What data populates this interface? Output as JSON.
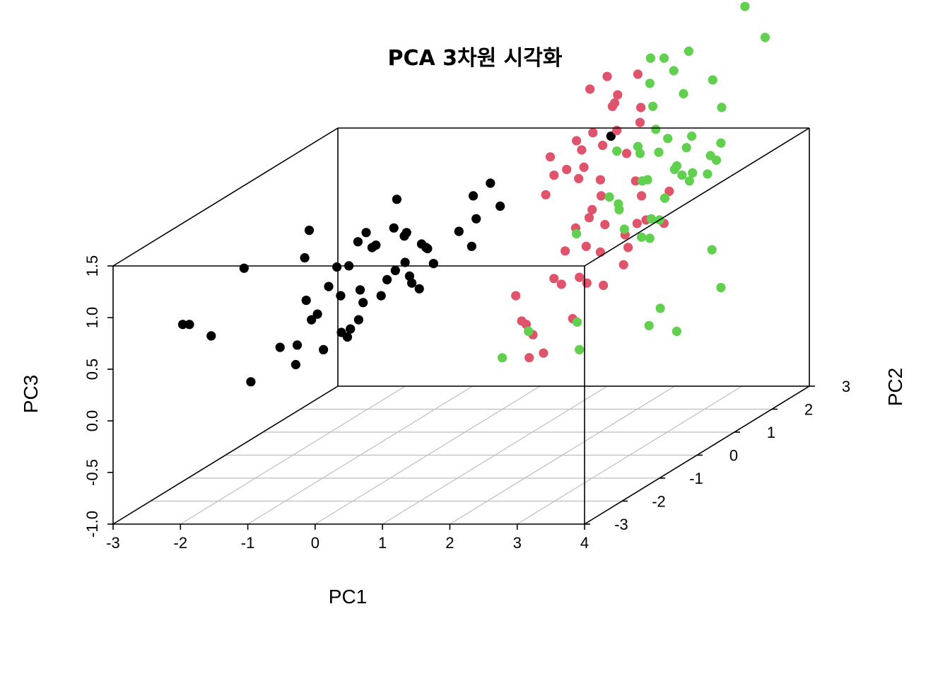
{
  "chart_data": {
    "type": "scatter3d",
    "title": "PCA 3차원 시각화",
    "xlabel": "PC1",
    "ylabel": "PC2",
    "zlabel": "PC3",
    "xlim": [
      -3,
      4
    ],
    "ylim": [
      -3,
      3
    ],
    "zlim": [
      -1.0,
      1.5
    ],
    "x_ticks": [
      "-3",
      "-2",
      "-1",
      "0",
      "1",
      "2",
      "3",
      "4"
    ],
    "y_ticks": [
      "-3",
      "-2",
      "-1",
      "0",
      "1",
      "2",
      "3"
    ],
    "z_ticks": [
      "-1.0",
      "-0.5",
      "0.0",
      "0.5",
      "1.0",
      "1.5"
    ],
    "grid": true,
    "series": [
      {
        "color": "#000000",
        "points": [
          [
            -2.3,
            -2.4,
            0.8
          ],
          [
            -2.2,
            -2.4,
            0.8
          ],
          [
            -2.1,
            -2.0,
            0.6
          ],
          [
            -1.9,
            -1.3,
            0.0
          ],
          [
            -1.3,
            -1.6,
            0.4
          ],
          [
            -1.1,
            -1.5,
            0.4
          ],
          [
            -0.9,
            -1.9,
            0.3
          ],
          [
            -1.0,
            -1.3,
            0.6
          ],
          [
            -0.8,
            -1.5,
            0.7
          ],
          [
            -0.6,
            -1.7,
            0.4
          ],
          [
            -0.5,
            -1.4,
            0.5
          ],
          [
            -0.3,
            -1.6,
            0.5
          ],
          [
            -0.2,
            -1.7,
            0.6
          ],
          [
            -0.3,
            -1.3,
            0.6
          ],
          [
            -0.4,
            -1.0,
            0.7
          ],
          [
            -0.5,
            -0.9,
            0.8
          ],
          [
            -0.3,
            -0.7,
            0.7
          ],
          [
            -0.2,
            -0.5,
            0.9
          ],
          [
            -0.1,
            -0.3,
            0.8
          ],
          [
            0.1,
            -0.4,
            0.7
          ],
          [
            0.2,
            -0.2,
            0.9
          ],
          [
            0.0,
            0.0,
            1.0
          ],
          [
            -0.2,
            0.2,
            1.0
          ],
          [
            -0.5,
            0.0,
            1.2
          ],
          [
            -0.6,
            -0.3,
            1.1
          ],
          [
            0.1,
            -0.6,
            0.8
          ],
          [
            -0.8,
            -1.8,
            0.9
          ],
          [
            -0.4,
            -1.6,
            0.9
          ],
          [
            -0.1,
            -0.9,
            0.9
          ],
          [
            0.0,
            -0.6,
            1.0
          ],
          [
            0.2,
            -0.4,
            1.1
          ],
          [
            0.3,
            0.3,
            1.1
          ],
          [
            0.6,
            0.1,
            1.0
          ],
          [
            -0.7,
            -0.6,
            1.2
          ],
          [
            -0.5,
            -1.2,
            1.1
          ],
          [
            -0.2,
            -0.2,
            1.2
          ],
          [
            0.5,
            0.4,
            1.2
          ],
          [
            0.8,
            0.5,
            1.3
          ],
          [
            0.4,
            0.5,
            1.4
          ],
          [
            0.6,
            0.6,
            1.5
          ],
          [
            -0.4,
            -1.7,
            1.2
          ],
          [
            0.1,
            -0.8,
            1.3
          ],
          [
            -0.4,
            -0.1,
            1.5
          ],
          [
            -0.3,
            -2.1,
            1.1
          ],
          [
            -0.1,
            -1.3,
            1.3
          ],
          [
            -1.2,
            -1.0,
            1.4
          ],
          [
            -1.1,
            -1.3,
            1.2
          ],
          [
            -1.5,
            -2.2,
            1.3
          ],
          [
            -0.8,
            -0.2,
            1.2
          ],
          [
            2.0,
            1.3,
            1.8
          ]
        ]
      },
      {
        "color": "#df536b",
        "points": [
          [
            2.2,
            -1.6,
            0.9
          ],
          [
            2.3,
            -1.5,
            0.6
          ],
          [
            2.4,
            -1.5,
            0.5
          ],
          [
            2.4,
            -1.6,
            0.3
          ],
          [
            2.4,
            -1.8,
            0.7
          ],
          [
            2.5,
            -1.4,
            0.3
          ],
          [
            2.6,
            -1.1,
            0.9
          ],
          [
            2.6,
            -1.3,
            1.0
          ],
          [
            2.7,
            -0.8,
            0.9
          ],
          [
            2.8,
            -0.8,
            1.2
          ],
          [
            2.9,
            -0.6,
            1.1
          ],
          [
            3.0,
            -0.7,
            0.8
          ],
          [
            3.1,
            -0.3,
            1.2
          ],
          [
            3.3,
            -0.1,
            1.3
          ],
          [
            3.4,
            0.2,
            1.2
          ],
          [
            3.3,
            -0.7,
            1.0
          ],
          [
            3.0,
            -1.0,
            1.6
          ],
          [
            2.9,
            -0.6,
            1.8
          ],
          [
            2.6,
            -0.5,
            1.9
          ],
          [
            2.6,
            0.0,
            2.0
          ],
          [
            2.7,
            0.2,
            2.1
          ],
          [
            2.4,
            0.1,
            2.1
          ],
          [
            2.5,
            0.5,
            2.3
          ],
          [
            2.6,
            0.4,
            2.4
          ],
          [
            2.3,
            0.2,
            2.5
          ],
          [
            2.5,
            0.3,
            2.6
          ],
          [
            2.9,
            0.4,
            2.6
          ],
          [
            2.8,
            -0.1,
            2.4
          ],
          [
            3.1,
            0.1,
            2.2
          ],
          [
            3.0,
            0.3,
            2.3
          ],
          [
            3.5,
            -0.7,
            1.4
          ],
          [
            3.2,
            -0.4,
            1.1
          ],
          [
            2.8,
            -0.4,
            1.6
          ],
          [
            2.4,
            -0.2,
            2.0
          ],
          [
            2.1,
            -0.5,
            2.0
          ],
          [
            2.4,
            -0.6,
            1.9
          ],
          [
            2.2,
            -0.8,
            1.7
          ],
          [
            2.9,
            0.1,
            1.9
          ],
          [
            3.4,
            -0.4,
            1.6
          ],
          [
            3.7,
            -0.2,
            1.6
          ],
          [
            2.7,
            -0.9,
            1.4
          ],
          [
            2.6,
            -1.0,
            1.2
          ],
          [
            2.1,
            0.2,
            2.0
          ],
          [
            2.1,
            -0.4,
            1.8
          ],
          [
            2.3,
            -0.1,
            1.7
          ],
          [
            2.8,
            -0.3,
            1.3
          ],
          [
            2.9,
            -0.9,
            1.5
          ],
          [
            3.2,
            -0.2,
            1.7
          ],
          [
            2.7,
            -0.6,
            0.8
          ],
          [
            2.6,
            -0.8,
            0.5
          ]
        ]
      },
      {
        "color": "#61d04f",
        "points": [
          [
            2.5,
            -2.5,
            0.5
          ],
          [
            2.5,
            -1.8,
            0.6
          ],
          [
            3.0,
            -1.4,
            0.6
          ],
          [
            3.2,
            -1.7,
            0.4
          ],
          [
            3.9,
            -1.1,
            0.5
          ],
          [
            3.9,
            -0.8,
            0.6
          ],
          [
            4.2,
            -0.9,
            0.4
          ],
          [
            4.3,
            0.1,
            0.6
          ],
          [
            4.0,
            0.4,
            0.9
          ],
          [
            3.3,
            0.0,
            1.1
          ],
          [
            3.5,
            -0.1,
            1.3
          ],
          [
            3.2,
            -0.5,
            1.3
          ],
          [
            3.3,
            0.4,
            1.4
          ],
          [
            3.1,
            0.3,
            1.6
          ],
          [
            3.5,
            0.5,
            1.6
          ],
          [
            3.7,
            0.9,
            1.7
          ],
          [
            3.9,
            0.7,
            1.7
          ],
          [
            3.8,
            1.0,
            1.8
          ],
          [
            3.4,
            0.8,
            1.8
          ],
          [
            3.1,
            0.6,
            1.8
          ],
          [
            2.9,
            0.4,
            1.9
          ],
          [
            2.7,
            0.2,
            1.9
          ],
          [
            2.9,
            0.8,
            2.2
          ],
          [
            2.8,
            0.9,
            2.4
          ],
          [
            2.7,
            1.1,
            2.6
          ],
          [
            3.1,
            1.0,
            2.5
          ],
          [
            3.3,
            0.9,
            2.3
          ],
          [
            3.4,
            1.5,
            2.3
          ],
          [
            3.7,
            1.2,
            2.1
          ],
          [
            3.6,
            0.6,
            1.6
          ],
          [
            3.9,
            2.0,
            2.6
          ],
          [
            3.6,
            2.0,
            2.9
          ],
          [
            3.3,
            1.6,
            3.1
          ],
          [
            3.1,
            1.4,
            2.6
          ],
          [
            2.9,
            1.1,
            2.6
          ],
          [
            3.0,
            0.7,
            2.0
          ],
          [
            3.2,
            0.9,
            1.6
          ],
          [
            3.5,
            0.3,
            1.7
          ],
          [
            3.3,
            -0.2,
            1.7
          ],
          [
            3.0,
            -0.3,
            1.5
          ],
          [
            2.7,
            0.0,
            1.5
          ],
          [
            2.9,
            -0.1,
            1.4
          ],
          [
            3.1,
            0.1,
            1.9
          ],
          [
            3.4,
            0.3,
            2.0
          ],
          [
            3.7,
            0.4,
            2.0
          ],
          [
            4.0,
            -0.2,
            1.7
          ],
          [
            3.6,
            -0.5,
            1.4
          ],
          [
            3.4,
            -0.4,
            1.2
          ],
          [
            2.6,
            -0.7,
            1.3
          ],
          [
            3.6,
            1.0,
            1.5
          ]
        ]
      }
    ]
  }
}
